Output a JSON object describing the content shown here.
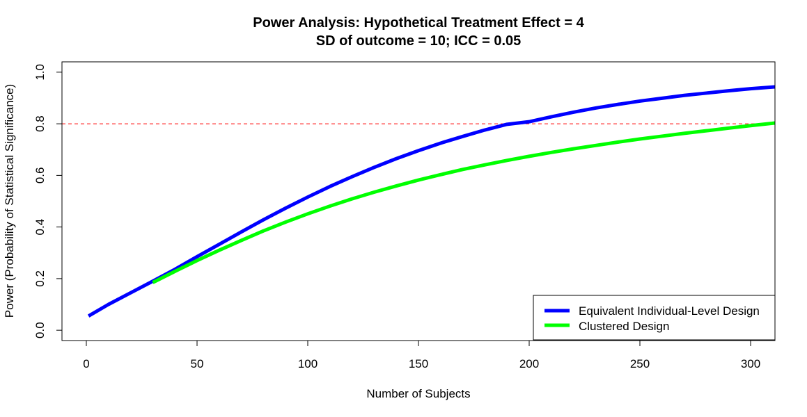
{
  "chart_data": {
    "type": "line",
    "title": "Power Analysis: Hypothetical Treatment Effect = 4",
    "subtitle": "SD of outcome = 10; ICC = 0.05",
    "xlabel": "Number of Subjects",
    "ylabel": "Power (Probability of Statistical Significance)",
    "xlim": [
      -11,
      311
    ],
    "ylim": [
      -0.04,
      1.04
    ],
    "xticks": [
      0,
      50,
      100,
      150,
      200,
      250,
      300
    ],
    "yticks": [
      0.0,
      0.2,
      0.4,
      0.6,
      0.8,
      1.0
    ],
    "xtick_labels": [
      "0",
      "50",
      "100",
      "150",
      "200",
      "250",
      "300"
    ],
    "ytick_labels": [
      "0.0",
      "0.2",
      "0.4",
      "0.6",
      "0.8",
      "1.0"
    ],
    "reference_line": {
      "y": 0.8,
      "color": "#ff0000",
      "style": "dashed"
    },
    "legend_position": "bottom-right",
    "series": [
      {
        "name": "Equivalent Individual-Level Design",
        "color": "#0000ff",
        "x": [
          1,
          10,
          20,
          30,
          40,
          50,
          60,
          70,
          80,
          90,
          100,
          110,
          120,
          130,
          140,
          150,
          160,
          170,
          180,
          190,
          200,
          210,
          220,
          230,
          240,
          250,
          260,
          270,
          280,
          290,
          300,
          311
        ],
        "y": [
          0.055,
          0.1,
          0.145,
          0.19,
          0.236,
          0.285,
          0.333,
          0.381,
          0.428,
          0.473,
          0.516,
          0.557,
          0.595,
          0.631,
          0.665,
          0.696,
          0.725,
          0.751,
          0.776,
          0.798,
          0.808,
          0.827,
          0.845,
          0.861,
          0.875,
          0.888,
          0.899,
          0.91,
          0.919,
          0.928,
          0.936,
          0.943
        ]
      },
      {
        "name": "Clustered Design",
        "color": "#00ff00",
        "x": [
          30,
          40,
          50,
          60,
          70,
          80,
          90,
          100,
          110,
          120,
          130,
          140,
          150,
          160,
          170,
          180,
          190,
          200,
          210,
          220,
          230,
          240,
          250,
          260,
          270,
          280,
          290,
          300,
          311
        ],
        "y": [
          0.185,
          0.228,
          0.27,
          0.31,
          0.348,
          0.385,
          0.419,
          0.451,
          0.481,
          0.509,
          0.535,
          0.559,
          0.582,
          0.603,
          0.623,
          0.641,
          0.658,
          0.674,
          0.689,
          0.703,
          0.716,
          0.729,
          0.741,
          0.752,
          0.763,
          0.773,
          0.783,
          0.793,
          0.803
        ]
      }
    ]
  }
}
